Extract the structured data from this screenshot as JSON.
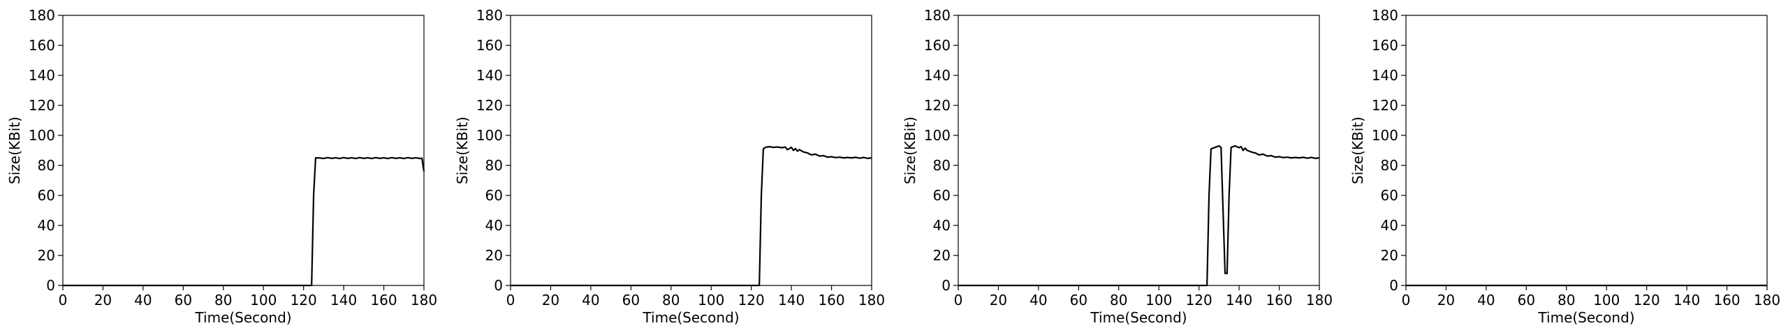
{
  "chart_data": [
    {
      "type": "line",
      "xlabel": "Time(Second)",
      "ylabel": "Size(KBit)",
      "xlim": [
        0,
        180
      ],
      "ylim": [
        0,
        180
      ],
      "xticks": [
        "0",
        "20",
        "40",
        "60",
        "80",
        "100",
        "120",
        "140",
        "160",
        "180"
      ],
      "yticks": [
        "0",
        "20",
        "40",
        "60",
        "80",
        "100",
        "120",
        "140",
        "160",
        "180"
      ],
      "grid": false,
      "series": [
        {
          "color": "#000000",
          "x": [
            0,
            124,
            125,
            126,
            128,
            130,
            132,
            134,
            136,
            138,
            140,
            142,
            144,
            146,
            148,
            150,
            152,
            154,
            156,
            158,
            160,
            162,
            164,
            166,
            168,
            170,
            172,
            174,
            176,
            178,
            179,
            180
          ],
          "y": [
            0,
            0,
            60,
            85,
            85,
            84.6,
            85.2,
            84.7,
            85.1,
            84.6,
            85.2,
            84.7,
            85.1,
            84.6,
            85.2,
            84.7,
            85.1,
            84.6,
            85.2,
            84.7,
            85.1,
            84.6,
            85.2,
            84.7,
            85.1,
            84.6,
            85.2,
            84.7,
            85.1,
            84.6,
            84.8,
            76
          ]
        }
      ]
    },
    {
      "type": "line",
      "xlabel": "Time(Second)",
      "ylabel": "Size(KBit)",
      "xlim": [
        0,
        180
      ],
      "ylim": [
        0,
        180
      ],
      "xticks": [
        "0",
        "20",
        "40",
        "60",
        "80",
        "100",
        "120",
        "140",
        "160",
        "180"
      ],
      "yticks": [
        "0",
        "20",
        "40",
        "60",
        "80",
        "100",
        "120",
        "140",
        "160",
        "180"
      ],
      "grid": false,
      "series": [
        {
          "color": "#000000",
          "x": [
            0,
            124,
            125,
            126,
            127,
            129,
            131,
            133,
            135,
            137,
            138,
            140,
            141,
            142,
            143,
            144,
            146,
            148,
            150,
            152,
            154,
            156,
            158,
            160,
            162,
            164,
            166,
            168,
            170,
            172,
            174,
            176,
            178,
            180
          ],
          "y": [
            0,
            0,
            60,
            91,
            92,
            92.5,
            92,
            92.3,
            91.8,
            92.2,
            90.5,
            92,
            90,
            91.2,
            89.5,
            90.5,
            89,
            88.3,
            87,
            87.5,
            86.2,
            86.5,
            85.5,
            85.8,
            85.2,
            85.5,
            85,
            85.3,
            85,
            85.4,
            84.8,
            85.3,
            84.7,
            85
          ]
        }
      ]
    },
    {
      "type": "line",
      "xlabel": "Time(Second)",
      "ylabel": "Size(KBit)",
      "xlim": [
        0,
        180
      ],
      "ylim": [
        0,
        180
      ],
      "xticks": [
        "0",
        "20",
        "40",
        "60",
        "80",
        "100",
        "120",
        "140",
        "160",
        "180"
      ],
      "yticks": [
        "0",
        "20",
        "40",
        "60",
        "80",
        "100",
        "120",
        "140",
        "160",
        "180"
      ],
      "grid": false,
      "series": [
        {
          "color": "#000000",
          "x": [
            0,
            124,
            125,
            126,
            128,
            130,
            131,
            132,
            133,
            134,
            135,
            136,
            138,
            140,
            141,
            142,
            143,
            144,
            146,
            148,
            150,
            152,
            154,
            156,
            158,
            160,
            162,
            164,
            166,
            168,
            170,
            172,
            174,
            176,
            178,
            180
          ],
          "y": [
            0,
            0,
            60,
            91,
            92,
            93,
            92,
            50,
            8,
            8,
            60,
            92,
            93,
            91.8,
            92.5,
            90,
            91.5,
            90,
            89,
            88.3,
            87,
            87.5,
            86.2,
            86.5,
            85.5,
            85.8,
            85.2,
            85.5,
            85,
            85.3,
            85,
            85.4,
            84.8,
            85.3,
            84.7,
            85
          ]
        }
      ]
    },
    {
      "type": "line",
      "xlabel": "Time(Second)",
      "ylabel": "Size(KBit)",
      "xlim": [
        0,
        180
      ],
      "ylim": [
        0,
        180
      ],
      "xticks": [
        "0",
        "20",
        "40",
        "60",
        "80",
        "100",
        "120",
        "140",
        "160",
        "180"
      ],
      "yticks": [
        "0",
        "20",
        "40",
        "60",
        "80",
        "100",
        "120",
        "140",
        "160",
        "180"
      ],
      "grid": false,
      "series": [
        {
          "color": "#000000",
          "x": [
            0,
            180
          ],
          "y": [
            0,
            0
          ]
        }
      ]
    }
  ]
}
